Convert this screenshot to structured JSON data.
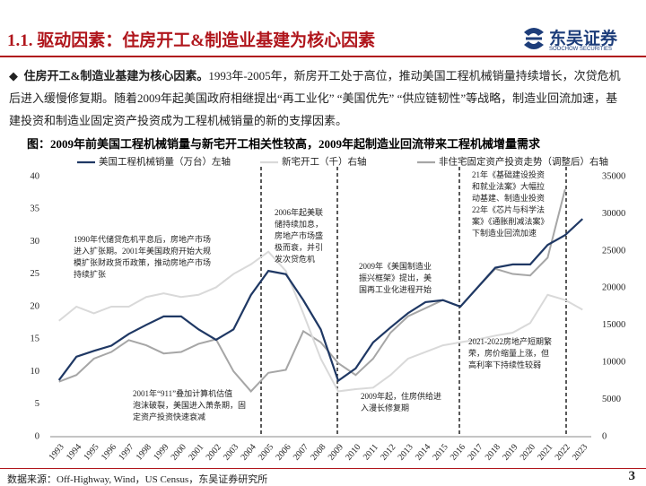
{
  "header": {
    "title": "1.1. 驱动因素：住房开工&制造业基建为核心因素",
    "logo": "东吴证券",
    "logo_en": "SOOCHOW SECURITIES"
  },
  "body": {
    "bullet": "◆",
    "lead": "住房开工&制造业基建为核心因素。",
    "text": "1993年-2005年，新房开工处于高位，推动美国工程机械销量持续增长，次贷危机后进入缓慢修复期。随着2009年起美国政府相继提出“再工业化” “美国优先” “供应链韧性”等战略，制造业回流加速，基建投资和制造业固定资产投资成为工程机械销量的新的支撑因素。",
    "caption": "图：2009年前美国工程机械销量与新宅开工相关性较高，2009年起制造业回流带来工程机械增量需求"
  },
  "chart_data": {
    "type": "line",
    "categories": [
      "1993",
      "1994",
      "1995",
      "1996",
      "1997",
      "1998",
      "1999",
      "2000",
      "2001",
      "2002",
      "2003",
      "2004",
      "2005",
      "2006",
      "2007",
      "2008",
      "2009",
      "2010",
      "2011",
      "2012",
      "2013",
      "2014",
      "2015",
      "2016",
      "2017",
      "2018",
      "2019",
      "2020",
      "2021",
      "2022",
      "2023"
    ],
    "series": [
      {
        "name": "美国工程机械销量（万台）左轴",
        "color": "#1f3864",
        "values": [
          8.7,
          12.3,
          13.2,
          14.0,
          15.8,
          17.2,
          18.5,
          18.5,
          16.5,
          14.9,
          16.5,
          21.8,
          25.5,
          25.0,
          21.0,
          16.5,
          8.6,
          10.5,
          14.5,
          16.8,
          19.0,
          20.7,
          21.0,
          20.0,
          23.0,
          26.0,
          26.5,
          26.5,
          29.5,
          31.0,
          33.5
        ]
      },
      {
        "name": "新宅开工（千）右轴",
        "color": "#d9d9d9",
        "axis": "y2",
        "values": [
          15600,
          17500,
          16600,
          17500,
          17500,
          18800,
          19300,
          18800,
          19100,
          20100,
          21900,
          23200,
          24900,
          22300,
          16600,
          10500,
          6100,
          6400,
          6600,
          8300,
          10500,
          11400,
          12300,
          12700,
          13100,
          13600,
          14000,
          15300,
          19100,
          18400,
          17100
        ]
      },
      {
        "name": "非住宅固定资产投资走势（调整后）右轴",
        "color": "#a6a6a6",
        "axis": "y2",
        "values": [
          7400,
          8300,
          10500,
          11400,
          13000,
          12300,
          11200,
          11400,
          12500,
          13100,
          8800,
          6100,
          8600,
          9000,
          14200,
          12700,
          9900,
          8300,
          10500,
          14000,
          16200,
          17300,
          18400,
          17500,
          20100,
          22600,
          21900,
          21700,
          24100,
          33300,
          null
        ]
      }
    ],
    "ylim": [
      0,
      40
    ],
    "yticks": [
      0,
      5,
      10,
      15,
      20,
      25,
      30,
      35,
      40
    ],
    "y2lim": [
      0,
      35000
    ],
    "y2ticks": [
      0,
      5000,
      10000,
      15000,
      20000,
      25000,
      30000,
      35000
    ],
    "annotations": [
      {
        "lines": [
          "1990年代储贷危机平息后，房地产市场",
          "进入扩张期。2001年美国政府开始大规",
          "模扩张财政货币政策，推动房地产市场",
          "持续扩张"
        ]
      },
      {
        "lines": [
          "2006年起美联",
          "储持续加息，",
          "房地产市场盛",
          "极而衰，并引",
          "发次贷危机"
        ]
      },
      {
        "lines": [
          "2009年《美国制造业",
          "振兴框架》提出，美",
          "国再工业化进程开始"
        ]
      },
      {
        "lines": [
          "21年《基础建设投资",
          "和就业法案》大幅拉",
          "动基建、制造业投资",
          "22年《芯片与科学法",
          "案》《通胀削减法案》",
          "下制造业回流加速"
        ]
      },
      {
        "lines": [
          "2021-2022房地产短期繁",
          "荣，房价缩量上涨，但",
          "高利率下持续性较弱"
        ]
      },
      {
        "lines": [
          "2009年起，住房供给进",
          "入漫长修复期"
        ]
      },
      {
        "lines": [
          "2001年“911”叠加计算机估值",
          "泡沫破裂，美国进入萧条期，固",
          "定资产投资快速衰减"
        ]
      }
    ]
  },
  "footer": {
    "source": "数据来源：Off-Highway, Wind，US Census，东吴证券研究所",
    "page": "3"
  }
}
